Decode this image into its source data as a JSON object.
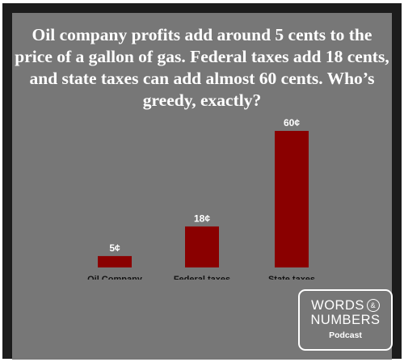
{
  "headline": "Oil company profits add around 5 cents to the price of a gallon of gas. Federal taxes add 18 cents, and state taxes can add almost 60 cents. Who’s greedy, exactly?",
  "colors": {
    "frame": "#1c1c1c",
    "background": "#777777",
    "bar": "#8a0000",
    "text": "#ffffff",
    "axis_text": "#111111"
  },
  "logo": {
    "line1": "WORDS",
    "ampersand": "&",
    "line2": "NUMBERS",
    "subtitle": "Podcast"
  },
  "chart_data": {
    "type": "bar",
    "categories": [
      "Oil Company",
      "Federal taxes",
      "State taxes"
    ],
    "values": [
      5,
      18,
      60
    ],
    "data_labels": [
      "5¢",
      "18¢",
      "60¢"
    ],
    "ylim": [
      0,
      60
    ],
    "grid": false,
    "legend": "none"
  }
}
